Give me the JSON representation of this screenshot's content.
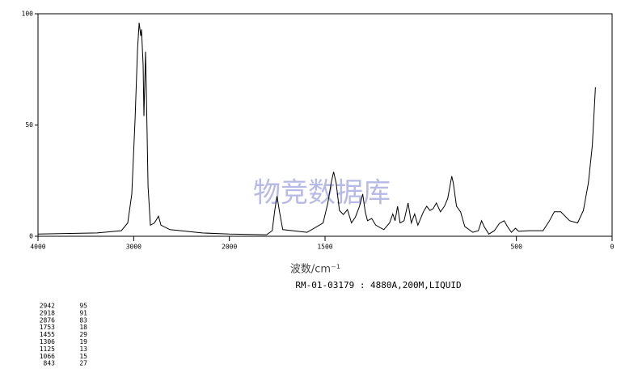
{
  "chart_data": {
    "type": "line",
    "x_label": "波数/cm⁻¹",
    "subtitle": "RM-01-03179 : 4880A,200M,LIQUID",
    "watermark": "物竞数据库",
    "xlim": [
      4000,
      0
    ],
    "xbreak": 2000,
    "xticks": [
      4000,
      3000,
      2000,
      1500,
      500,
      0
    ],
    "ylim": [
      0,
      100
    ],
    "yticks": [
      0,
      50,
      100
    ],
    "x": [
      4000,
      3383,
      3129,
      3062,
      3020,
      2986,
      2960,
      2943,
      2926,
      2918,
      2901,
      2893,
      2876,
      2867,
      2850,
      2825,
      2783,
      2741,
      2715,
      2622,
      2284,
      2000,
      1806,
      1776,
      1763,
      1751,
      1738,
      1721,
      1594,
      1510,
      1485,
      1468,
      1455,
      1442,
      1425,
      1404,
      1383,
      1362,
      1341,
      1320,
      1303,
      1290,
      1278,
      1256,
      1235,
      1193,
      1163,
      1146,
      1134,
      1121,
      1108,
      1087,
      1066,
      1049,
      1032,
      1015,
      986,
      969,
      952,
      935,
      918,
      897,
      876,
      859,
      847,
      838,
      830,
      813,
      792,
      770,
      728,
      699,
      682,
      669,
      644,
      615,
      589,
      564,
      547,
      526,
      505,
      488,
      433,
      361,
      327,
      302,
      268,
      222,
      180,
      150,
      124,
      103,
      87
    ],
    "series": [
      {
        "name": "spectrum",
        "color": "#000000",
        "values": [
          1,
          1.5,
          2.5,
          6,
          19,
          52,
          84,
          96,
          90,
          93,
          77,
          54,
          83,
          63,
          22.5,
          5,
          6,
          9,
          5,
          3,
          1.5,
          1,
          0.7,
          2.5,
          11.6,
          18,
          11,
          3,
          1.8,
          6,
          15,
          24,
          29,
          24,
          11.6,
          9.8,
          12,
          6,
          8.7,
          13.5,
          19,
          11,
          7,
          8,
          5,
          3,
          6,
          10,
          7,
          13.5,
          6,
          7,
          15,
          6,
          10,
          5,
          11,
          13.5,
          11.6,
          12.4,
          15,
          11,
          13.5,
          17,
          22.5,
          27,
          24,
          13.5,
          11,
          4.4,
          1.8,
          2.5,
          7,
          4.4,
          1,
          2.5,
          5.8,
          7,
          4.4,
          1.8,
          3.6,
          2.2,
          2.5,
          2.5,
          7,
          11,
          11,
          7,
          6,
          11.6,
          24,
          41,
          67
        ]
      }
    ],
    "peak_table": {
      "rows": [
        [
          "2942",
          "95"
        ],
        [
          "2918",
          "91"
        ],
        [
          "2876",
          "83"
        ],
        [
          "1753",
          "18"
        ],
        [
          "1455",
          "29"
        ],
        [
          "1306",
          "19"
        ],
        [
          "1125",
          "13"
        ],
        [
          "1066",
          "15"
        ],
        [
          "843",
          "27"
        ]
      ]
    }
  }
}
